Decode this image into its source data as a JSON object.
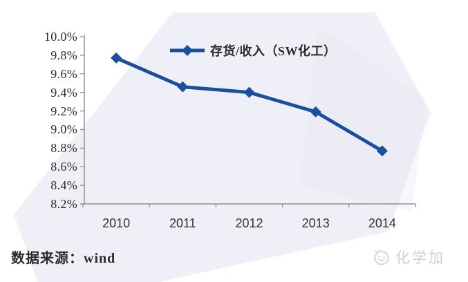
{
  "chart_data": {
    "type": "line",
    "title": "",
    "categories": [
      "2010",
      "2011",
      "2012",
      "2013",
      "2014"
    ],
    "series": [
      {
        "name": "存货/收入（SW化工）",
        "values": [
          9.77,
          9.46,
          9.4,
          9.19,
          8.77
        ],
        "color": "#1a4f9e",
        "marker": "diamond"
      }
    ],
    "xlabel": "",
    "ylabel": "",
    "unit": "percent",
    "ylim": [
      8.2,
      10.0
    ],
    "ytick_step": 0.2,
    "ytick_labels": [
      "10.0%",
      "9.8%",
      "9.6%",
      "9.4%",
      "9.2%",
      "9.0%",
      "8.8%",
      "8.6%",
      "8.4%",
      "8.2%"
    ],
    "grid": false,
    "legend_position": "top-center",
    "axis_color": "#909090"
  },
  "source": {
    "label": "数据来源：wind"
  },
  "watermark": {
    "logo_text": "化学加",
    "logo_icon": "smiley-circle-icon",
    "logo_color": "#d2d3da"
  }
}
